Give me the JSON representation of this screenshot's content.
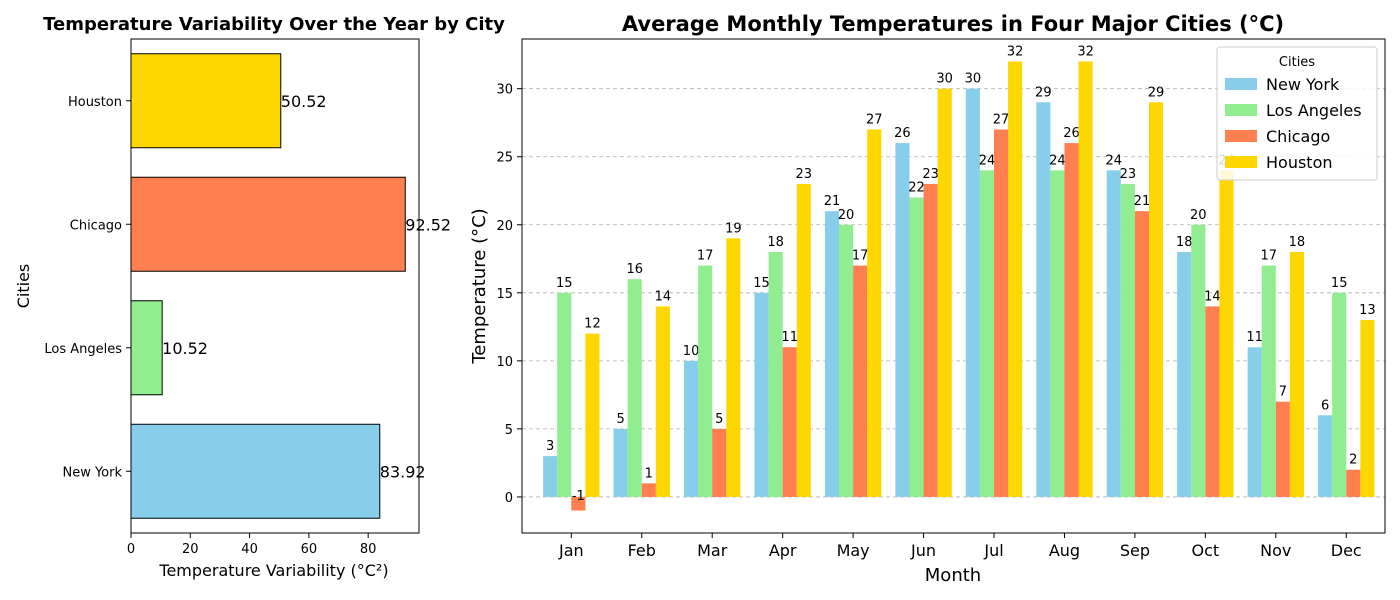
{
  "chart_data": [
    {
      "type": "bar",
      "orientation": "horizontal",
      "title": "Temperature Variability Over the Year by City",
      "xlabel": "Temperature Variability (°C²)",
      "ylabel": "Cities",
      "categories": [
        "New York",
        "Los Angeles",
        "Chicago",
        "Houston"
      ],
      "values": [
        83.92,
        10.52,
        92.52,
        50.52
      ],
      "value_labels": [
        "83.92",
        "10.52",
        "92.52",
        "50.52"
      ],
      "colors": [
        "#87CEEB",
        "#90EE90",
        "#FF7F50",
        "#FFD700"
      ],
      "xlim": [
        0,
        97.15
      ],
      "xticks": [
        0,
        20,
        40,
        60,
        80
      ],
      "grid": false
    },
    {
      "type": "bar",
      "title": "Average Monthly Temperatures in Four Major Cities (°C)",
      "xlabel": "Month",
      "ylabel": "Temperature (°C)",
      "categories": [
        "Jan",
        "Feb",
        "Mar",
        "Apr",
        "May",
        "Jun",
        "Jul",
        "Aug",
        "Sep",
        "Oct",
        "Nov",
        "Dec"
      ],
      "series": [
        {
          "name": "New York",
          "color": "#87CEEB",
          "values": [
            3,
            5,
            10,
            15,
            21,
            26,
            30,
            29,
            24,
            18,
            11,
            6
          ]
        },
        {
          "name": "Los Angeles",
          "color": "#90EE90",
          "values": [
            15,
            16,
            17,
            18,
            20,
            22,
            24,
            24,
            23,
            20,
            17,
            15
          ]
        },
        {
          "name": "Chicago",
          "color": "#FF7F50",
          "values": [
            -1,
            1,
            5,
            11,
            17,
            23,
            27,
            26,
            21,
            14,
            7,
            2
          ]
        },
        {
          "name": "Houston",
          "color": "#FFD700",
          "values": [
            12,
            14,
            19,
            23,
            27,
            30,
            32,
            32,
            29,
            24,
            18,
            13
          ]
        }
      ],
      "ylim": [
        -2.65,
        33.65
      ],
      "yticks": [
        0,
        5,
        10,
        15,
        20,
        25,
        30
      ],
      "grid": true,
      "grid_axis": "y",
      "legend_title": "Cities",
      "legend_position": "top-right"
    }
  ]
}
